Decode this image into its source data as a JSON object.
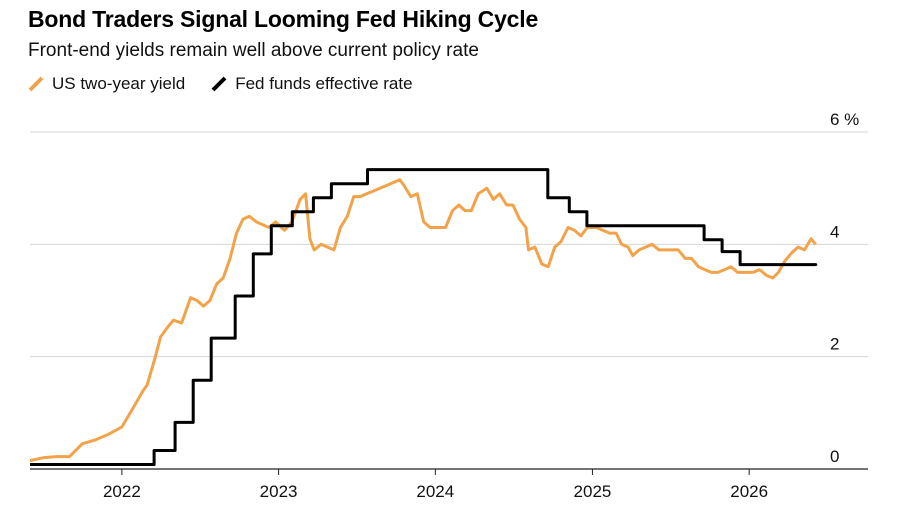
{
  "header": {
    "title": "Bond Traders Signal Looming Fed Hiking Cycle",
    "subtitle": "Front-end yields remain well above current policy rate"
  },
  "colors": {
    "two_year": "#F2A34A",
    "fed_funds": "#000000",
    "grid": "#d6d6d6"
  },
  "chart_data": {
    "type": "line",
    "title": "Bond Traders Signal Looming Fed Hiking Cycle",
    "subtitle": "Front-end yields remain well above current policy rate",
    "xlim": [
      "2021-06-01",
      "2026-06-15"
    ],
    "ylim": [
      0,
      6
    ],
    "y_ticks": [
      0,
      2,
      4,
      6
    ],
    "y_tick_labels": [
      "0",
      "2",
      "4",
      "6 %"
    ],
    "x_ticks": [
      "2022-01-01",
      "2023-01-01",
      "2024-01-01",
      "2025-01-01",
      "2026-01-01"
    ],
    "x_tick_labels": [
      "2022",
      "2023",
      "2024",
      "2025",
      "2026"
    ],
    "grid": true,
    "legend": "top-left",
    "series": [
      {
        "name": "US two-year yield",
        "color": "#F2A34A",
        "x": [
          "2021-06-01",
          "2021-07-01",
          "2021-08-01",
          "2021-09-01",
          "2021-10-01",
          "2021-11-01",
          "2021-12-01",
          "2022-01-01",
          "2022-02-01",
          "2022-02-20",
          "2022-03-01",
          "2022-03-20",
          "2022-04-01",
          "2022-04-20",
          "2022-05-01",
          "2022-05-20",
          "2022-06-10",
          "2022-06-25",
          "2022-07-10",
          "2022-07-25",
          "2022-08-10",
          "2022-08-25",
          "2022-09-10",
          "2022-09-25",
          "2022-10-10",
          "2022-10-25",
          "2022-11-10",
          "2022-11-25",
          "2022-12-10",
          "2022-12-25",
          "2023-01-15",
          "2023-02-01",
          "2023-02-20",
          "2023-03-05",
          "2023-03-15",
          "2023-03-25",
          "2023-04-10",
          "2023-04-25",
          "2023-05-10",
          "2023-05-25",
          "2023-06-10",
          "2023-06-25",
          "2023-07-10",
          "2023-07-25",
          "2023-08-10",
          "2023-08-25",
          "2023-09-10",
          "2023-09-25",
          "2023-10-10",
          "2023-10-20",
          "2023-11-05",
          "2023-11-20",
          "2023-12-05",
          "2023-12-20",
          "2024-01-10",
          "2024-01-25",
          "2024-02-10",
          "2024-02-25",
          "2024-03-10",
          "2024-03-25",
          "2024-04-10",
          "2024-04-30",
          "2024-05-15",
          "2024-05-30",
          "2024-06-15",
          "2024-06-30",
          "2024-07-15",
          "2024-07-30",
          "2024-08-05",
          "2024-08-20",
          "2024-09-05",
          "2024-09-20",
          "2024-10-05",
          "2024-10-20",
          "2024-11-05",
          "2024-11-20",
          "2024-12-05",
          "2024-12-20",
          "2025-01-10",
          "2025-01-25",
          "2025-02-10",
          "2025-02-25",
          "2025-03-10",
          "2025-03-25",
          "2025-04-05",
          "2025-04-20",
          "2025-05-05",
          "2025-05-20",
          "2025-06-05",
          "2025-06-20",
          "2025-07-05",
          "2025-07-20",
          "2025-08-05",
          "2025-08-20",
          "2025-09-05",
          "2025-09-20",
          "2025-10-05",
          "2025-10-20",
          "2025-11-05",
          "2025-11-20",
          "2025-12-05",
          "2025-12-20",
          "2026-01-10",
          "2026-01-25",
          "2026-02-10",
          "2026-02-25",
          "2026-03-10",
          "2026-03-25",
          "2026-04-10",
          "2026-04-25",
          "2026-05-10",
          "2026-05-25",
          "2026-06-05"
        ],
        "values": [
          0.15,
          0.2,
          0.22,
          0.22,
          0.45,
          0.52,
          0.62,
          0.75,
          1.15,
          1.4,
          1.5,
          2.0,
          2.35,
          2.55,
          2.65,
          2.6,
          3.05,
          3.0,
          2.9,
          3.0,
          3.3,
          3.4,
          3.75,
          4.2,
          4.45,
          4.5,
          4.4,
          4.35,
          4.3,
          4.4,
          4.25,
          4.4,
          4.8,
          4.9,
          4.1,
          3.9,
          4.0,
          3.95,
          3.9,
          4.3,
          4.5,
          4.85,
          4.85,
          4.9,
          4.95,
          5.0,
          5.05,
          5.1,
          5.15,
          5.05,
          4.85,
          4.9,
          4.4,
          4.3,
          4.3,
          4.3,
          4.6,
          4.7,
          4.6,
          4.6,
          4.9,
          5.0,
          4.8,
          4.9,
          4.7,
          4.7,
          4.45,
          4.3,
          3.9,
          3.95,
          3.65,
          3.6,
          3.95,
          4.05,
          4.3,
          4.25,
          4.15,
          4.3,
          4.3,
          4.25,
          4.2,
          4.2,
          4.0,
          3.95,
          3.8,
          3.9,
          3.95,
          4.0,
          3.9,
          3.9,
          3.9,
          3.9,
          3.75,
          3.75,
          3.6,
          3.55,
          3.5,
          3.5,
          3.55,
          3.6,
          3.5,
          3.5,
          3.5,
          3.55,
          3.45,
          3.4,
          3.5,
          3.7,
          3.85,
          3.95,
          3.9,
          4.1,
          4.0
        ]
      },
      {
        "name": "Fed funds effective rate",
        "color": "#000000",
        "step": true,
        "x": [
          "2021-06-01",
          "2022-03-17",
          "2022-05-05",
          "2022-06-16",
          "2022-07-28",
          "2022-09-22",
          "2022-11-03",
          "2022-12-15",
          "2023-02-02",
          "2023-03-23",
          "2023-05-04",
          "2023-07-27",
          "2024-09-19",
          "2024-11-08",
          "2024-12-19",
          "2025-09-18",
          "2025-10-30",
          "2025-12-11",
          "2026-06-05"
        ],
        "values": [
          0.08,
          0.33,
          0.83,
          1.58,
          2.33,
          3.08,
          3.83,
          4.33,
          4.58,
          4.83,
          5.08,
          5.33,
          4.83,
          4.58,
          4.33,
          4.08,
          3.87,
          3.64,
          3.62
        ]
      }
    ]
  }
}
